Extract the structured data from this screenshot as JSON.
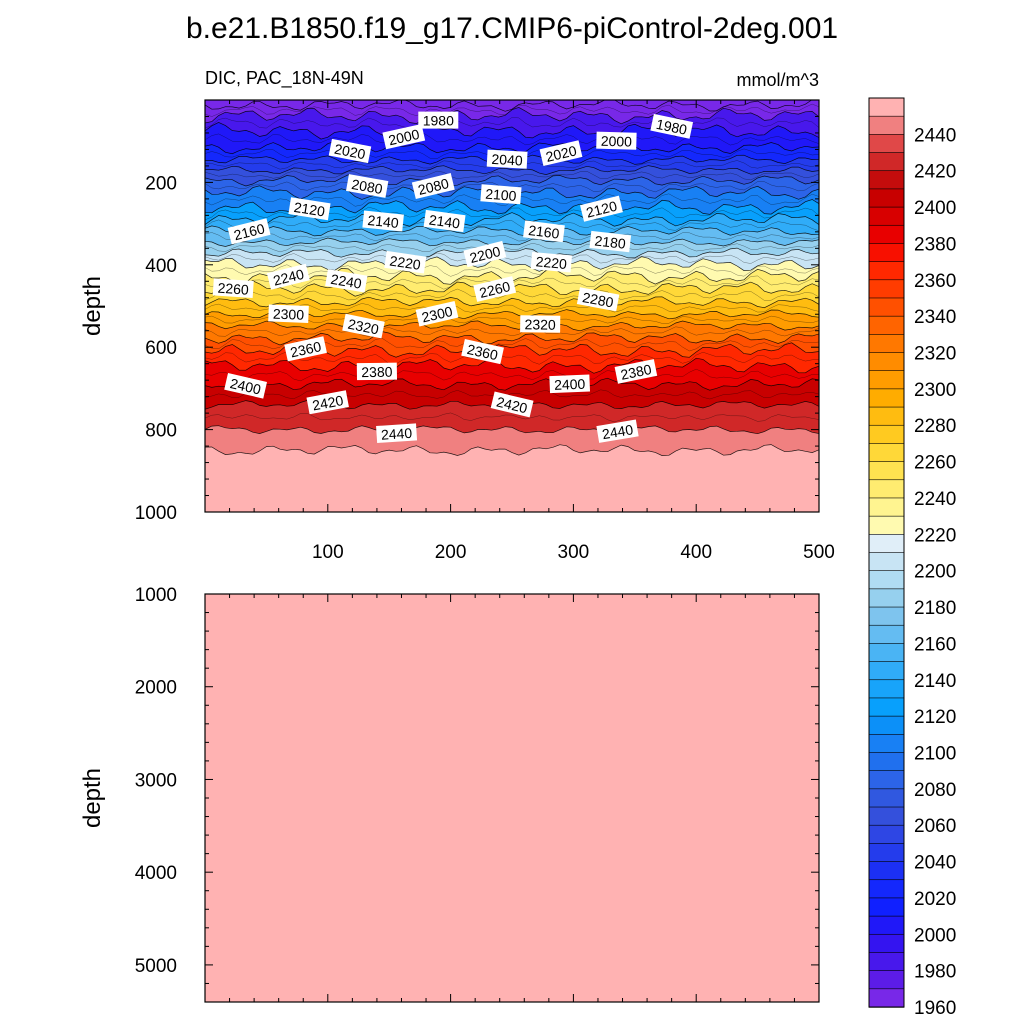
{
  "chart_data": {
    "type": "contour",
    "title": "b.e21.B1850.f19_g17.CMIP6-piControl-2deg.001",
    "variable": "DIC",
    "region": "PAC_18N-49N",
    "left_subtitle": "DIC, PAC_18N-49N",
    "units": "mmol/m^3",
    "upper_panel": {
      "ylabel": "depth",
      "ylim": [
        1000,
        0
      ],
      "yticks": [
        200,
        400,
        600,
        800,
        1000
      ],
      "xlim": [
        0,
        500
      ],
      "xticks": [
        100,
        200,
        300,
        400,
        500
      ],
      "isoline_depths": [
        {
          "value": 1960,
          "depth": 12
        },
        {
          "value": 1980,
          "depth": 38
        },
        {
          "value": 2000,
          "depth": 75
        },
        {
          "value": 2020,
          "depth": 115
        },
        {
          "value": 2040,
          "depth": 145
        },
        {
          "value": 2060,
          "depth": 170
        },
        {
          "value": 2080,
          "depth": 195
        },
        {
          "value": 2100,
          "depth": 225
        },
        {
          "value": 2120,
          "depth": 260
        },
        {
          "value": 2140,
          "depth": 290
        },
        {
          "value": 2160,
          "depth": 318
        },
        {
          "value": 2180,
          "depth": 345
        },
        {
          "value": 2200,
          "depth": 372
        },
        {
          "value": 2220,
          "depth": 398
        },
        {
          "value": 2240,
          "depth": 428
        },
        {
          "value": 2260,
          "depth": 458
        },
        {
          "value": 2280,
          "depth": 490
        },
        {
          "value": 2300,
          "depth": 520
        },
        {
          "value": 2320,
          "depth": 548
        },
        {
          "value": 2340,
          "depth": 578
        },
        {
          "value": 2360,
          "depth": 608
        },
        {
          "value": 2380,
          "depth": 645
        },
        {
          "value": 2400,
          "depth": 690
        },
        {
          "value": 2420,
          "depth": 740
        },
        {
          "value": 2440,
          "depth": 800
        },
        {
          "value": 2460,
          "depth": 850
        }
      ],
      "contour_labels": [
        {
          "text": "1980",
          "x": 190,
          "depth": 50
        },
        {
          "text": "1980",
          "x": 380,
          "depth": 65
        },
        {
          "text": "2000",
          "x": 162,
          "depth": 90
        },
        {
          "text": "2000",
          "x": 335,
          "depth": 100
        },
        {
          "text": "2020",
          "x": 118,
          "depth": 125
        },
        {
          "text": "2020",
          "x": 290,
          "depth": 130
        },
        {
          "text": "2040",
          "x": 246,
          "depth": 145
        },
        {
          "text": "2080",
          "x": 132,
          "depth": 210
        },
        {
          "text": "2080",
          "x": 186,
          "depth": 210
        },
        {
          "text": "2100",
          "x": 241,
          "depth": 230
        },
        {
          "text": "2120",
          "x": 85,
          "depth": 265
        },
        {
          "text": "2120",
          "x": 323,
          "depth": 265
        },
        {
          "text": "2140",
          "x": 145,
          "depth": 295
        },
        {
          "text": "2140",
          "x": 195,
          "depth": 295
        },
        {
          "text": "2160",
          "x": 36,
          "depth": 320
        },
        {
          "text": "2160",
          "x": 276,
          "depth": 320
        },
        {
          "text": "2180",
          "x": 330,
          "depth": 345
        },
        {
          "text": "2200",
          "x": 228,
          "depth": 375
        },
        {
          "text": "2220",
          "x": 163,
          "depth": 395
        },
        {
          "text": "2220",
          "x": 282,
          "depth": 395
        },
        {
          "text": "2240",
          "x": 68,
          "depth": 430
        },
        {
          "text": "2240",
          "x": 115,
          "depth": 440
        },
        {
          "text": "2260",
          "x": 23,
          "depth": 458
        },
        {
          "text": "2260",
          "x": 236,
          "depth": 460
        },
        {
          "text": "2280",
          "x": 320,
          "depth": 485
        },
        {
          "text": "2300",
          "x": 68,
          "depth": 520
        },
        {
          "text": "2300",
          "x": 189,
          "depth": 520
        },
        {
          "text": "2320",
          "x": 129,
          "depth": 550
        },
        {
          "text": "2320",
          "x": 273,
          "depth": 545
        },
        {
          "text": "2360",
          "x": 82,
          "depth": 605
        },
        {
          "text": "2360",
          "x": 226,
          "depth": 612
        },
        {
          "text": "2380",
          "x": 140,
          "depth": 660
        },
        {
          "text": "2380",
          "x": 351,
          "depth": 660
        },
        {
          "text": "2400",
          "x": 33,
          "depth": 695
        },
        {
          "text": "2400",
          "x": 297,
          "depth": 690
        },
        {
          "text": "2420",
          "x": 100,
          "depth": 735
        },
        {
          "text": "2420",
          "x": 250,
          "depth": 740
        },
        {
          "text": "2440",
          "x": 156,
          "depth": 810
        },
        {
          "text": "2440",
          "x": 336,
          "depth": 805
        }
      ]
    },
    "lower_panel": {
      "ylabel": "depth",
      "ylim": [
        5400,
        1000
      ],
      "yticks": [
        1000,
        2000,
        3000,
        4000,
        5000
      ],
      "uniform_value": "above 2440"
    },
    "colorbar": {
      "levels": [
        1960,
        1970,
        1980,
        1990,
        2000,
        2010,
        2020,
        2030,
        2040,
        2050,
        2060,
        2070,
        2080,
        2090,
        2100,
        2110,
        2120,
        2130,
        2140,
        2150,
        2160,
        2170,
        2180,
        2190,
        2200,
        2210,
        2220,
        2230,
        2240,
        2250,
        2260,
        2270,
        2280,
        2290,
        2300,
        2310,
        2320,
        2330,
        2340,
        2350,
        2360,
        2370,
        2380,
        2390,
        2400,
        2410,
        2420,
        2430,
        2440,
        2450
      ],
      "tick_labels": [
        "2440",
        "2420",
        "2400",
        "2380",
        "2360",
        "2340",
        "2320",
        "2300",
        "2280",
        "2260",
        "2240",
        "2220",
        "2200",
        "2180",
        "2160",
        "2140",
        "2120",
        "2100",
        "2080",
        "2060",
        "2040",
        "2020",
        "2000",
        "1980",
        "1960"
      ],
      "colors": [
        "#ffb2b2",
        "#f08080",
        "#e04848",
        "#d02828",
        "#c40c0c",
        "#c80000",
        "#d80000",
        "#e80000",
        "#f81000",
        "#ff2800",
        "#ff3c00",
        "#ff5000",
        "#ff6400",
        "#ff7800",
        "#ff8c00",
        "#ff9c00",
        "#ffac00",
        "#ffbc10",
        "#ffca20",
        "#ffd838",
        "#ffe250",
        "#ffec70",
        "#fff490",
        "#fffab0",
        "#e0eef8",
        "#c8e4f4",
        "#b0dcf2",
        "#96d0ee",
        "#7ec4ee",
        "#64bcf2",
        "#4ab4f4",
        "#30acf8",
        "#18a4fa",
        "#08a0fc",
        "#0c90f8",
        "#1880f4",
        "#2070ee",
        "#2c64e8",
        "#3058e0",
        "#3450dc",
        "#2e46e4",
        "#243cec",
        "#1c30f4",
        "#1428fc",
        "#1020ff",
        "#2018f8",
        "#3414f0",
        "#4818ec",
        "#5c1ce8",
        "#7828e8"
      ]
    }
  }
}
